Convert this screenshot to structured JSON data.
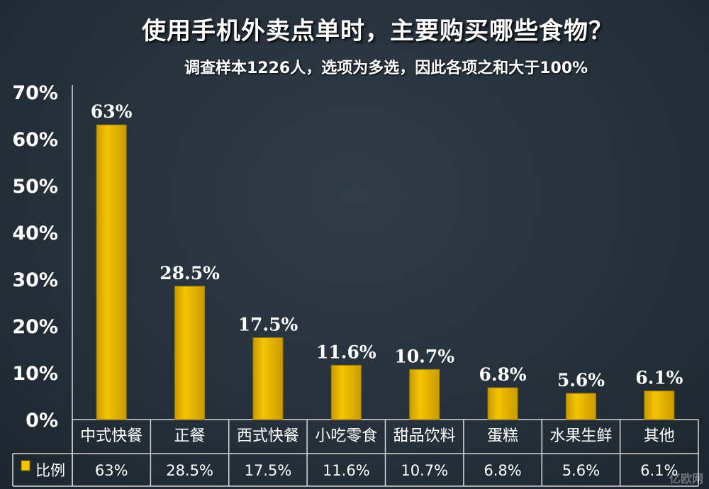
{
  "title": "使用手机外卖点单时，主要购买哪些食物？",
  "subtitle": "调查样本1226人，选项为多选，因此各项之和大于100%",
  "watermark": "亿欧网",
  "colors": {
    "bar": "#f5c400",
    "bar_dark": "#c99a00",
    "grid": "#ffffff",
    "background": "#27323c"
  },
  "chart_data": {
    "type": "bar",
    "categories": [
      "中式快餐",
      "正餐",
      "西式快餐",
      "小吃零食",
      "甜品饮料",
      "蛋糕",
      "水果生鲜",
      "其他"
    ],
    "series": [
      {
        "name": "比例",
        "values": [
          63,
          28.5,
          17.5,
          11.6,
          10.7,
          6.8,
          5.6,
          6.1
        ]
      }
    ],
    "data_labels": [
      "63%",
      "28.5%",
      "17.5%",
      "11.6%",
      "10.7%",
      "6.8%",
      "5.6%",
      "6.1%"
    ],
    "yticks": [
      "0%",
      "10%",
      "20%",
      "30%",
      "40%",
      "50%",
      "60%",
      "70%"
    ],
    "ylim": [
      0,
      70
    ],
    "grid": false,
    "legend": "data-table"
  }
}
